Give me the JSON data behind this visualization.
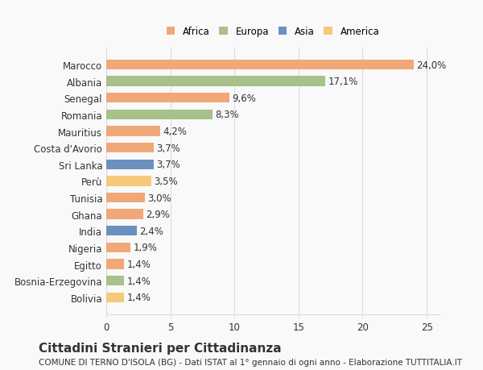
{
  "categories": [
    "Bolivia",
    "Bosnia-Erzegovina",
    "Egitto",
    "Nigeria",
    "India",
    "Ghana",
    "Tunisia",
    "Perù",
    "Sri Lanka",
    "Costa d'Avorio",
    "Mauritius",
    "Romania",
    "Senegal",
    "Albania",
    "Marocco"
  ],
  "values": [
    1.4,
    1.4,
    1.4,
    1.9,
    2.4,
    2.9,
    3.0,
    3.5,
    3.7,
    3.7,
    4.2,
    8.3,
    9.6,
    17.1,
    24.0
  ],
  "labels": [
    "1,4%",
    "1,4%",
    "1,4%",
    "1,9%",
    "2,4%",
    "2,9%",
    "3,0%",
    "3,5%",
    "3,7%",
    "3,7%",
    "4,2%",
    "8,3%",
    "9,6%",
    "17,1%",
    "24,0%"
  ],
  "colors": [
    "#F5C97A",
    "#A8C08A",
    "#F0A878",
    "#F0A878",
    "#6B8FBF",
    "#F0A878",
    "#F0A878",
    "#F5C97A",
    "#6B8FBF",
    "#F0A878",
    "#F0A878",
    "#A8C08A",
    "#F0A878",
    "#A8C08A",
    "#F0A878"
  ],
  "continent_colors": {
    "Africa": "#F0A878",
    "Europa": "#A8C08A",
    "Asia": "#6B8FBF",
    "America": "#F5C97A"
  },
  "legend_labels": [
    "Africa",
    "Europa",
    "Asia",
    "America"
  ],
  "title": "Cittadini Stranieri per Cittadinanza",
  "subtitle": "COMUNE DI TERNO D'ISOLA (BG) - Dati ISTAT al 1° gennaio di ogni anno - Elaborazione TUTTITALIA.IT",
  "xlim": [
    0,
    26
  ],
  "xticks": [
    0,
    5,
    10,
    15,
    20,
    25
  ],
  "background_color": "#f9f9f9",
  "grid_color": "#dddddd",
  "text_color": "#333333",
  "label_fontsize": 8.5,
  "tick_fontsize": 8.5,
  "title_fontsize": 11,
  "subtitle_fontsize": 7.5
}
